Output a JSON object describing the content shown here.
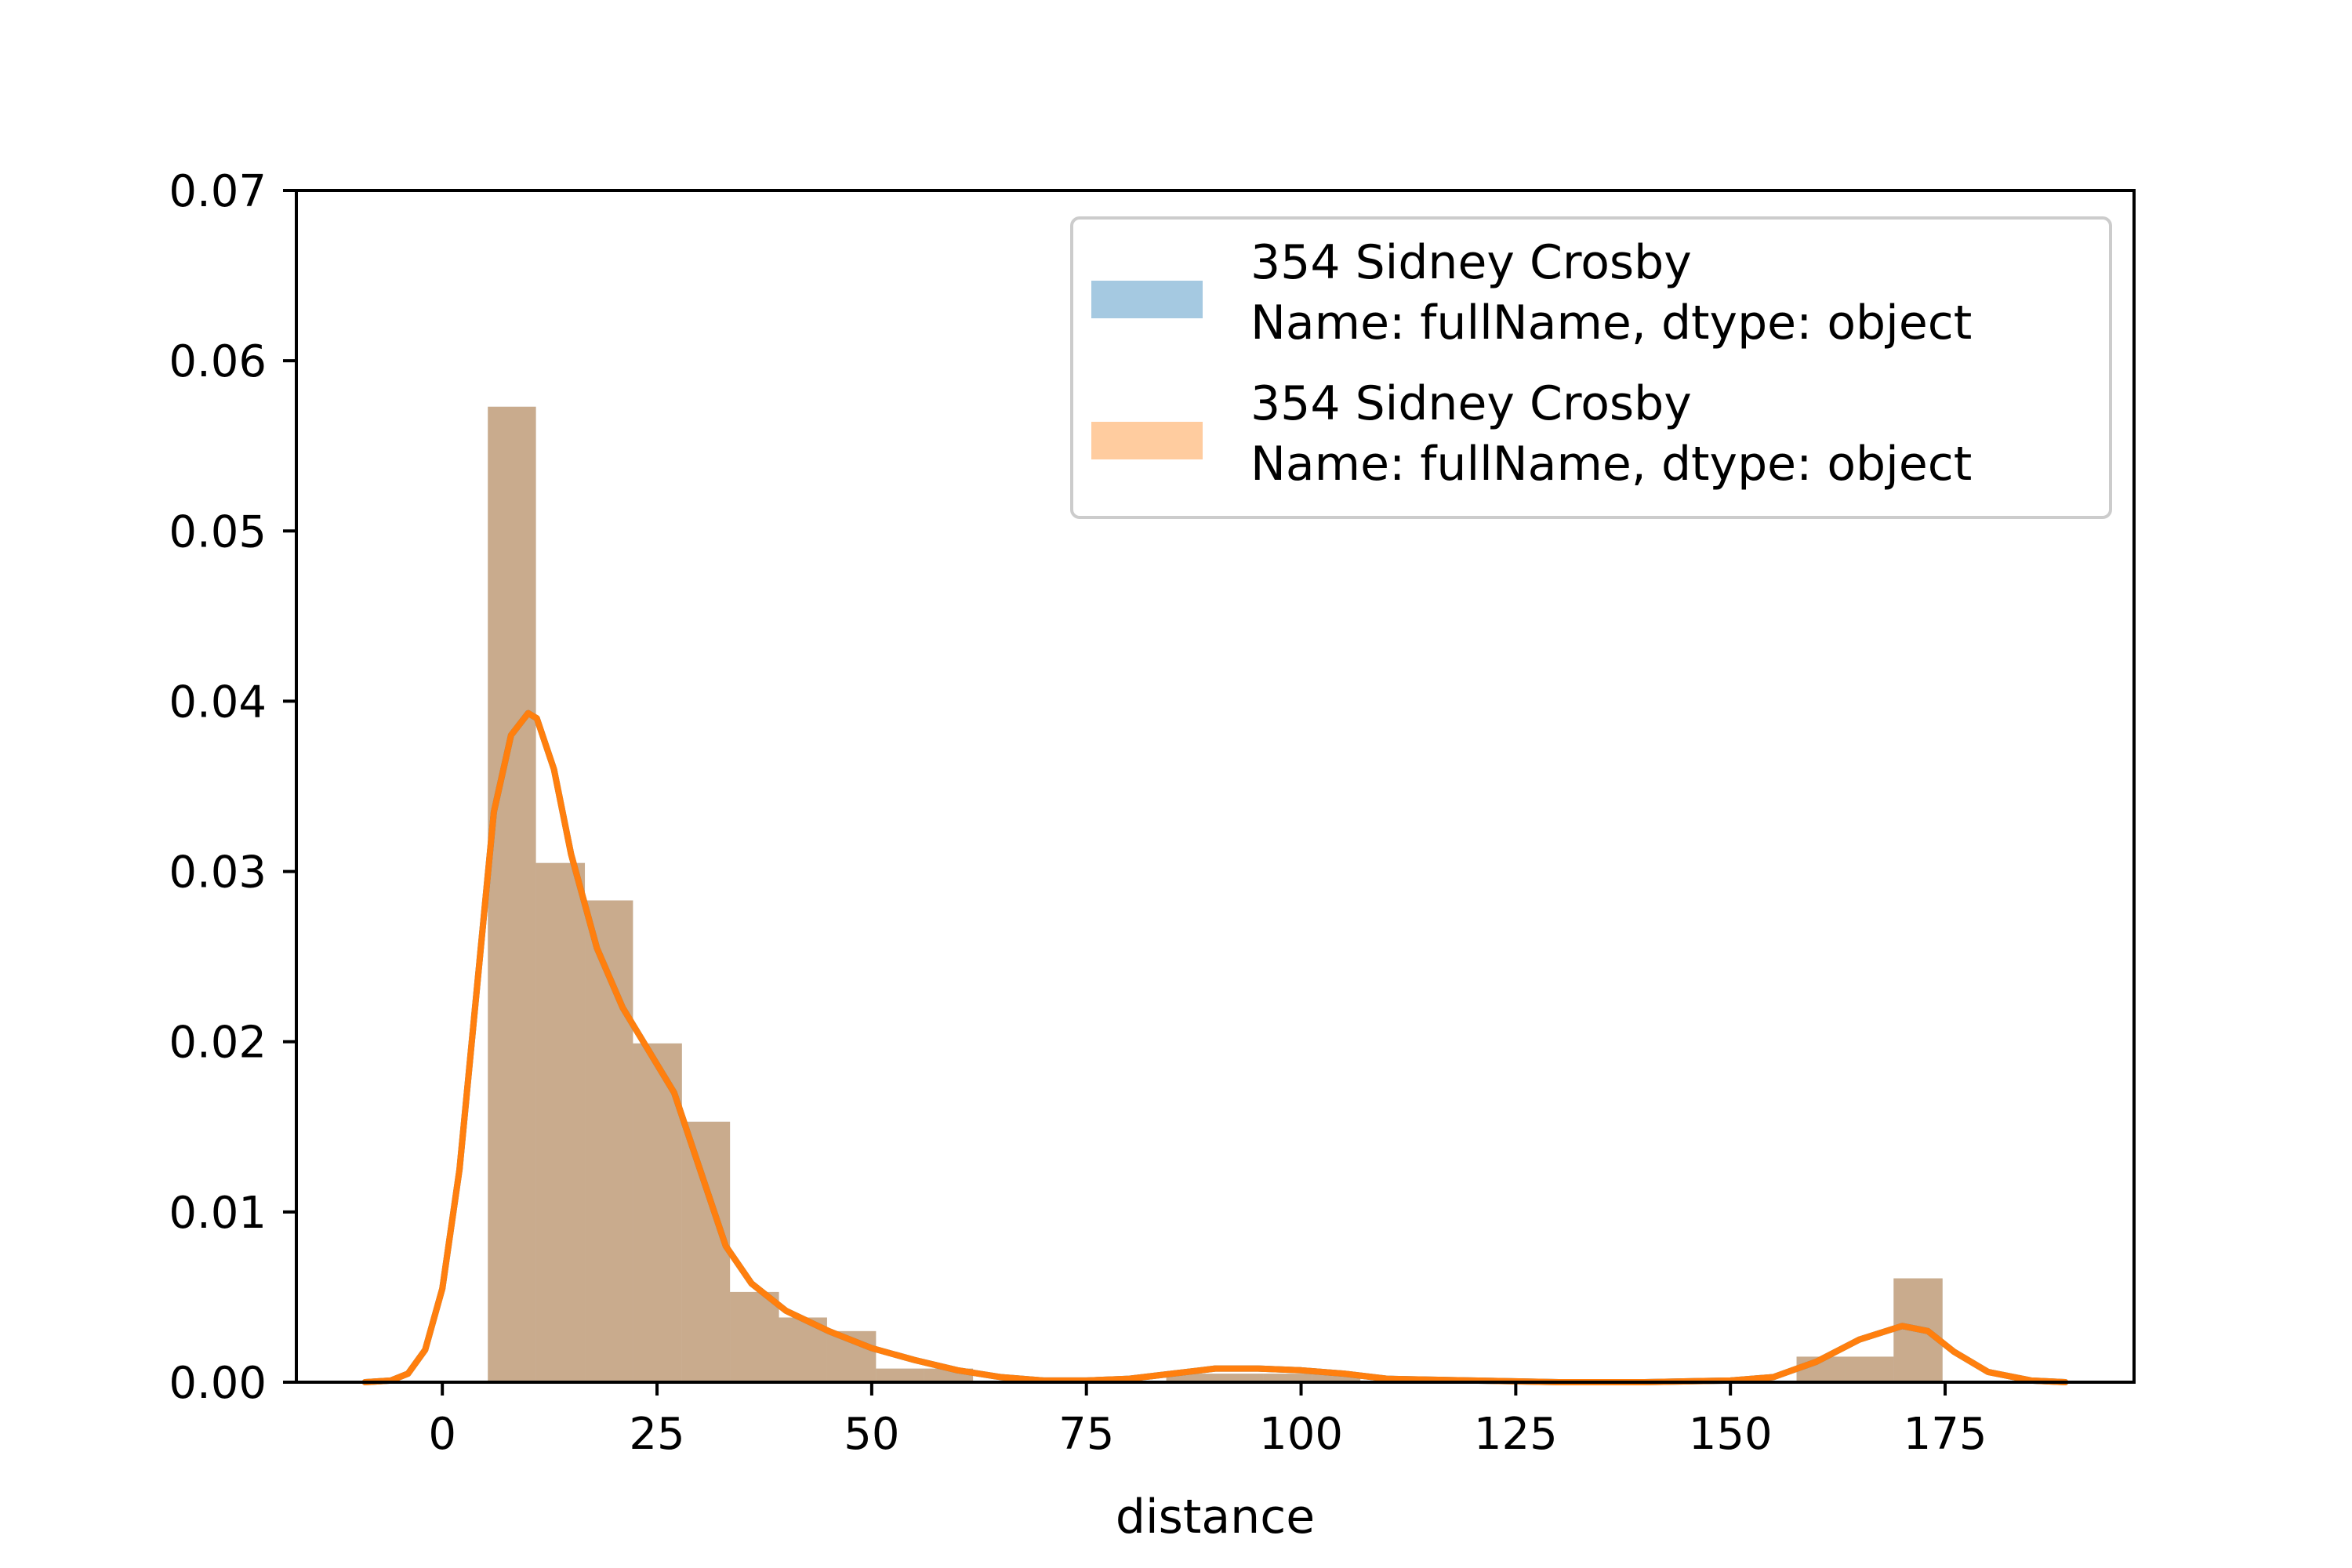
{
  "chart_data": {
    "type": "histogram",
    "xlabel": "distance",
    "ylabel": "",
    "xlim": [
      -17,
      197
    ],
    "ylim": [
      0,
      0.07
    ],
    "xticks": [
      0,
      25,
      50,
      75,
      100,
      125,
      150,
      175
    ],
    "yticks": [
      0.0,
      0.01,
      0.02,
      0.03,
      0.04,
      0.05,
      0.06,
      0.07
    ],
    "ytick_labels": [
      "0.00",
      "0.01",
      "0.02",
      "0.03",
      "0.04",
      "0.05",
      "0.06",
      "0.07"
    ],
    "grid": false,
    "legend_position": "top-right",
    "bin_edges": [
      5.3,
      10.9,
      16.6,
      22.2,
      27.9,
      33.5,
      39.2,
      44.8,
      50.5,
      56.1,
      61.8,
      67.4,
      73.0,
      78.7,
      84.3,
      90.0,
      95.6,
      101.3,
      106.9,
      112.6,
      118.2,
      123.9,
      129.5,
      135.2,
      140.8,
      146.4,
      152.1,
      157.7,
      163.4,
      169.0,
      174.7
    ],
    "series": [
      {
        "name": "354    Sidney Crosby\nName: fullName, dtype: object",
        "legend_lines": [
          "354    Sidney Crosby",
          "Name: fullName, dtype: object"
        ],
        "hist_color": "#a6c5e0",
        "line_color": "#1f77b4",
        "densities": [
          0.0573,
          0.0305,
          0.0283,
          0.0199,
          0.0153,
          0.0053,
          0.0038,
          0.003,
          0.0008,
          0.0008,
          0.0,
          0.0,
          0.0,
          0.0,
          0.0005,
          0.0005,
          0.0005,
          0.0005,
          0.0,
          0.0,
          0.0,
          0.0,
          0.0,
          0.0,
          0.0,
          0.0,
          0.0,
          0.0015,
          0.0015,
          0.0061
        ],
        "kde": {
          "x": [
            -9,
            -6,
            -4,
            -2,
            0,
            2,
            4,
            6,
            8,
            10,
            11,
            13,
            15,
            18,
            21,
            24,
            27,
            30,
            33,
            36,
            40,
            45,
            50,
            55,
            60,
            65,
            70,
            75,
            80,
            85,
            90,
            95,
            100,
            105,
            110,
            120,
            130,
            140,
            150,
            155,
            160,
            165,
            170,
            173,
            176,
            180,
            185,
            189
          ],
          "y": [
            0.0,
            0.0001,
            0.0005,
            0.0019,
            0.0055,
            0.0125,
            0.023,
            0.0335,
            0.038,
            0.0393,
            0.039,
            0.036,
            0.031,
            0.0255,
            0.022,
            0.0195,
            0.017,
            0.0125,
            0.008,
            0.0058,
            0.0042,
            0.003,
            0.002,
            0.0013,
            0.0007,
            0.0003,
            0.0001,
            0.0001,
            0.0002,
            0.0005,
            0.0008,
            0.0008,
            0.0007,
            0.0005,
            0.0002,
            0.0001,
            0.0,
            0.0,
            0.0001,
            0.0003,
            0.0012,
            0.0025,
            0.0033,
            0.003,
            0.0018,
            0.0006,
            0.0001,
            0.0
          ]
        }
      },
      {
        "name": "354    Sidney Crosby\nName: fullName, dtype: object",
        "legend_lines": [
          "354    Sidney Crosby",
          "Name: fullName, dtype: object"
        ],
        "hist_color": "#ffc9a0",
        "line_color": "#ff7f0e",
        "densities": [
          0.0573,
          0.0305,
          0.0283,
          0.0199,
          0.0153,
          0.0053,
          0.0038,
          0.003,
          0.0008,
          0.0008,
          0.0,
          0.0,
          0.0,
          0.0,
          0.0005,
          0.0005,
          0.0005,
          0.0005,
          0.0,
          0.0,
          0.0,
          0.0,
          0.0,
          0.0,
          0.0,
          0.0,
          0.0,
          0.0015,
          0.0015,
          0.0061
        ],
        "kde": {
          "x": [
            -9,
            -6,
            -4,
            -2,
            0,
            2,
            4,
            6,
            8,
            10,
            11,
            13,
            15,
            18,
            21,
            24,
            27,
            30,
            33,
            36,
            40,
            45,
            50,
            55,
            60,
            65,
            70,
            75,
            80,
            85,
            90,
            95,
            100,
            105,
            110,
            120,
            130,
            140,
            150,
            155,
            160,
            165,
            170,
            173,
            176,
            180,
            185,
            189
          ],
          "y": [
            0.0,
            0.0001,
            0.0005,
            0.0019,
            0.0055,
            0.0125,
            0.023,
            0.0335,
            0.038,
            0.0393,
            0.039,
            0.036,
            0.031,
            0.0255,
            0.022,
            0.0195,
            0.017,
            0.0125,
            0.008,
            0.0058,
            0.0042,
            0.003,
            0.002,
            0.0013,
            0.0007,
            0.0003,
            0.0001,
            0.0001,
            0.0002,
            0.0005,
            0.0008,
            0.0008,
            0.0007,
            0.0005,
            0.0002,
            0.0001,
            0.0,
            0.0,
            0.0001,
            0.0003,
            0.0012,
            0.0025,
            0.0033,
            0.003,
            0.0018,
            0.0006,
            0.0001,
            0.0
          ]
        }
      }
    ]
  }
}
